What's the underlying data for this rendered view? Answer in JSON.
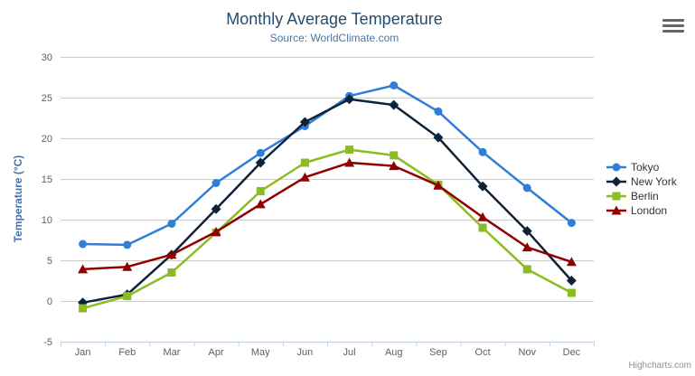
{
  "chart_data": {
    "type": "line",
    "title": "Monthly Average Temperature",
    "subtitle": "Source: WorldClimate.com",
    "xlabel": "",
    "ylabel": "Temperature (°C)",
    "categories": [
      "Jan",
      "Feb",
      "Mar",
      "Apr",
      "May",
      "Jun",
      "Jul",
      "Aug",
      "Sep",
      "Oct",
      "Nov",
      "Dec"
    ],
    "ylim": [
      -5,
      30
    ],
    "yticks": [
      -5,
      0,
      5,
      10,
      15,
      20,
      25,
      30
    ],
    "grid": true,
    "legend_position": "right",
    "series": [
      {
        "name": "Tokyo",
        "color": "#2f7ed8",
        "marker": "circle",
        "values": [
          7.0,
          6.9,
          9.5,
          14.5,
          18.2,
          21.5,
          25.2,
          26.5,
          23.3,
          18.3,
          13.9,
          9.6
        ]
      },
      {
        "name": "New York",
        "color": "#0d233a",
        "marker": "diamond",
        "values": [
          -0.2,
          0.8,
          5.7,
          11.3,
          17.0,
          22.0,
          24.8,
          24.1,
          20.1,
          14.1,
          8.6,
          2.5
        ]
      },
      {
        "name": "Berlin",
        "color": "#8bbc21",
        "marker": "square",
        "values": [
          -0.9,
          0.6,
          3.5,
          8.4,
          13.5,
          17.0,
          18.6,
          17.9,
          14.3,
          9.0,
          3.9,
          1.0
        ]
      },
      {
        "name": "London",
        "color": "#910000",
        "marker": "triangle",
        "values": [
          3.9,
          4.2,
          5.7,
          8.5,
          11.9,
          15.2,
          17.0,
          16.6,
          14.2,
          10.3,
          6.6,
          4.8
        ]
      }
    ]
  },
  "icons": {
    "export_menu": "hamburger-icon"
  },
  "credit": {
    "label": "Highcharts.com"
  },
  "colors": {
    "title": "#274b6d",
    "subtitle": "#4d759e",
    "axis_title": "#4572a7",
    "tick_label": "#606060",
    "grid_line": "#cccccc",
    "axis_line": "#c0d0e0",
    "legend_text": "#333333",
    "credit_text": "#909090",
    "menu_icon": "#666666"
  }
}
